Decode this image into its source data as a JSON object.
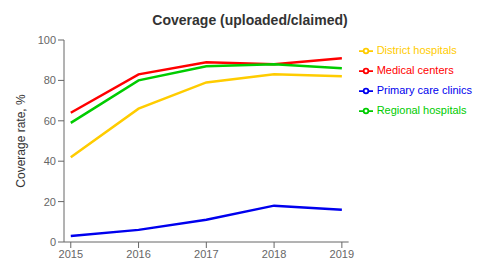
{
  "chart_data": {
    "type": "line",
    "title": "Coverage (uploaded/claimed)",
    "y_label": "Coverage rate, %",
    "x": [
      2015,
      2016,
      2017,
      2018,
      2019
    ],
    "series": [
      {
        "name": "Medical centers",
        "color": "#ff0000",
        "values": [
          64,
          83,
          89,
          88,
          91
        ]
      },
      {
        "name": "Regional hospitals",
        "color": "#00cc00",
        "values": [
          59,
          80,
          87,
          88,
          86
        ]
      },
      {
        "name": "District hospitals",
        "color": "#ffcc00",
        "values": [
          42,
          66,
          79,
          83,
          82
        ]
      },
      {
        "name": "Primary care clinics",
        "color": "#0000ee",
        "values": [
          3,
          6,
          11,
          18,
          16
        ]
      }
    ],
    "xlim": [
      2014.9,
      2019.1
    ],
    "xticks": [
      2015,
      2016,
      2017,
      2018,
      2019
    ],
    "ylim": [
      0,
      100
    ],
    "yticks": [
      0,
      20,
      40,
      60,
      80,
      100
    ],
    "grid": false,
    "legend": "upper right"
  }
}
